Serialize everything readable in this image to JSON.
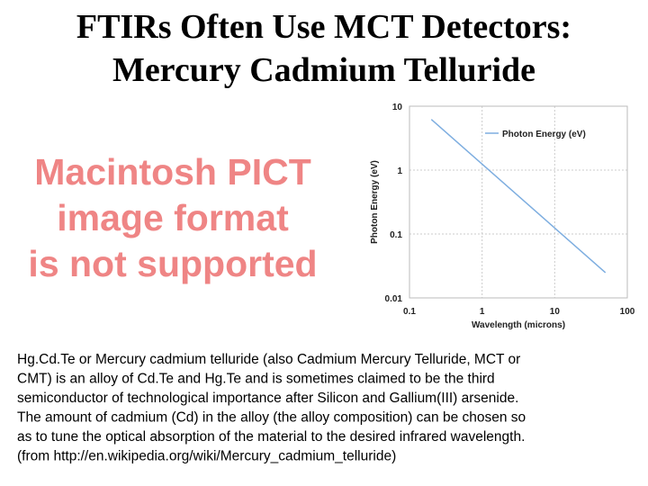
{
  "title_lines": [
    "FTIRs Often Use MCT Detectors:",
    "Mercury Cadmium Telluride"
  ],
  "placeholder_lines": [
    "Macintosh PICT",
    "image format",
    "is not supported"
  ],
  "chart_data": {
    "type": "line",
    "xlabel": "Wavelength (microns)",
    "ylabel": "Photon Energy (eV)",
    "x": [
      0.2,
      1,
      10,
      50
    ],
    "series": [
      {
        "name": "Photon Energy (eV)",
        "color": "#7eaee0",
        "values": [
          6.2,
          1.24,
          0.124,
          0.0248
        ]
      }
    ],
    "xscale": "log",
    "yscale": "log",
    "xlim": [
      0.1,
      100
    ],
    "ylim": [
      0.01,
      10
    ],
    "xticks": [
      0.1,
      1,
      10,
      100
    ],
    "yticks": [
      0.01,
      0.1,
      1,
      10
    ],
    "grid": true,
    "legend": "upper right"
  },
  "body_lines": [
    "Hg.Cd.Te or Mercury cadmium telluride (also Cadmium Mercury Telluride, MCT or",
    "CMT) is an alloy of Cd.Te and Hg.Te and is sometimes claimed to be the third",
    "semiconductor of technological importance after Silicon and Gallium(III) arsenide.",
    "The amount of cadmium (Cd) in the alloy (the alloy composition) can be chosen so",
    "as to tune the optical absorption of the material to the desired infrared wavelength.",
    "(from http://en.wikipedia.org/wiki/Mercury_cadmium_telluride)"
  ]
}
